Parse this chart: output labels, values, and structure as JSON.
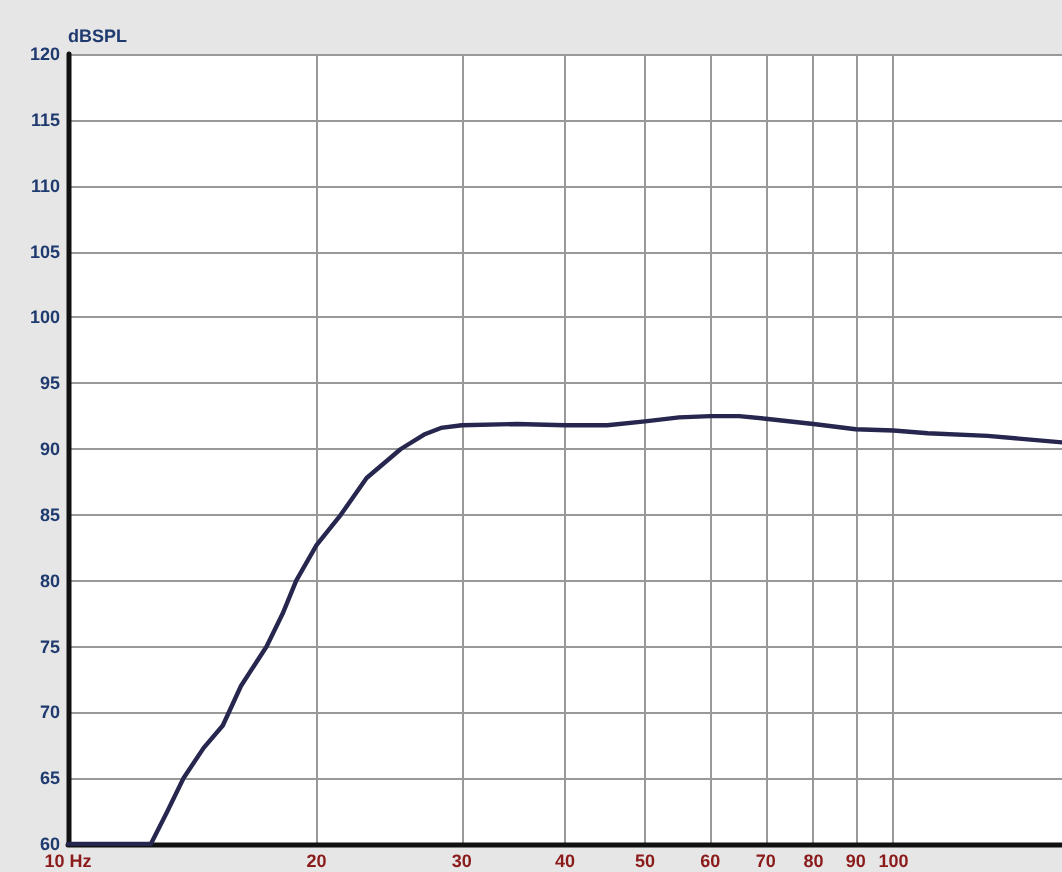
{
  "chart_data": {
    "type": "line",
    "ylabel": "dBSPL",
    "log": "x",
    "xlim": [
      10,
      160
    ],
    "xticks": [
      {
        "value": 10,
        "label": "10 Hz"
      },
      20,
      30,
      40,
      50,
      60,
      70,
      80,
      90,
      100
    ],
    "ylim": [
      60,
      120
    ],
    "yticks": [
      60,
      65,
      70,
      75,
      80,
      85,
      90,
      95,
      100,
      105,
      110,
      115,
      120
    ],
    "grid": true,
    "marker": "none",
    "line_style": "solid",
    "series": [
      {
        "color": "#26264f",
        "x": [
          10,
          12.6,
          13.2,
          13.8,
          14.6,
          15.4,
          16.2,
          17.4,
          18.2,
          18.9,
          20,
          21.4,
          23,
          25.3,
          27,
          28.3,
          30,
          35,
          40,
          45,
          50,
          55,
          60,
          65,
          70,
          80,
          90,
          100,
          110,
          130,
          160
        ],
        "values": [
          60,
          60,
          62.5,
          65,
          67.3,
          69,
          72,
          75,
          77.5,
          80,
          82.7,
          85,
          87.8,
          90,
          91.1,
          91.6,
          91.8,
          91.9,
          91.8,
          91.8,
          92.1,
          92.4,
          92.5,
          92.5,
          92.3,
          91.9,
          91.5,
          91.4,
          91.2,
          91,
          90.5
        ]
      }
    ]
  }
}
